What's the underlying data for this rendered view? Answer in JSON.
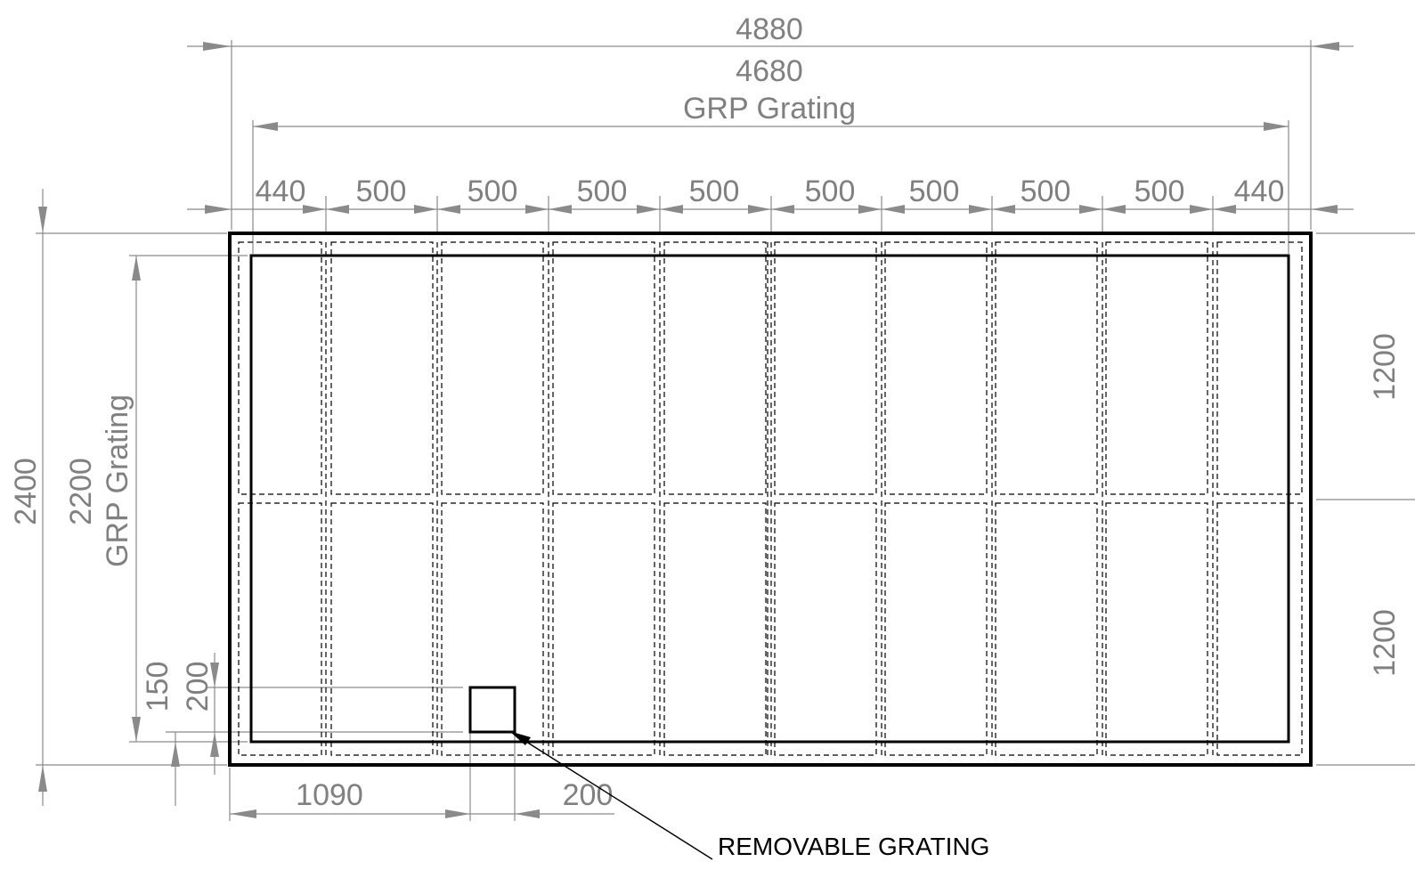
{
  "drawing": {
    "overall_width": "4880",
    "grating_width": "4680",
    "grating_width_label": "GRP Grating",
    "panel_widths": [
      "440",
      "500",
      "500",
      "500",
      "500",
      "500",
      "500",
      "500",
      "500",
      "440"
    ],
    "overall_height": "2400",
    "grating_height": "2200",
    "grating_height_label": "GRP Grating",
    "right_heights": [
      "1200",
      "1200"
    ],
    "opening_offset_x": "1090",
    "opening_width": "200",
    "opening_offset_y": "150",
    "opening_height": "200",
    "note": "REMOVABLE GRATING"
  }
}
